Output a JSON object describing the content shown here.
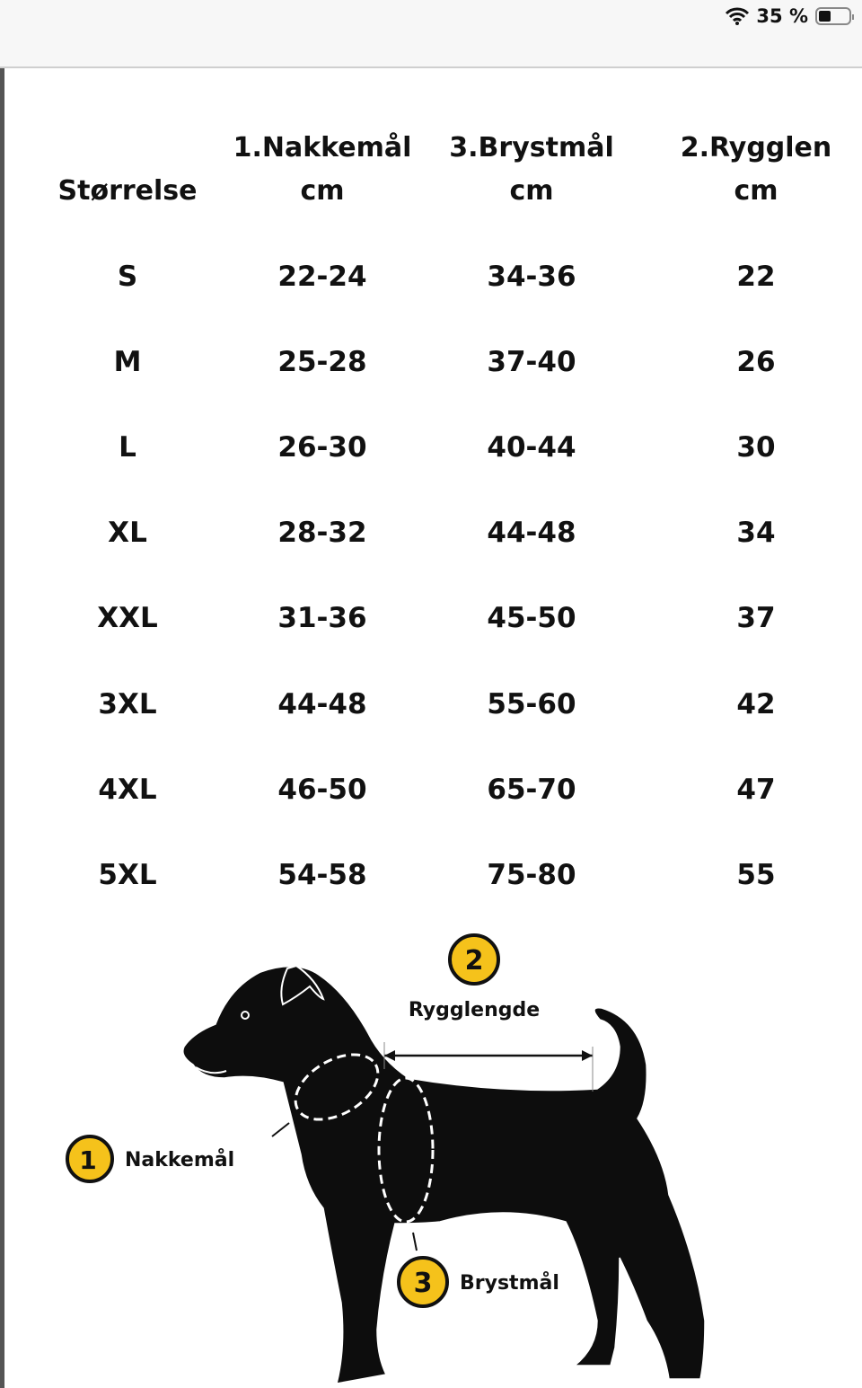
{
  "status_bar": {
    "wifi_icon": "wifi-icon",
    "battery_text": "35 %",
    "battery_level_percent": 35
  },
  "table": {
    "headers": [
      {
        "line1": "",
        "line2": "Størrelse"
      },
      {
        "line1": "1.Nakkemål",
        "line2": "cm"
      },
      {
        "line1": "3.Brystmål",
        "line2": "cm"
      },
      {
        "line1": "2.Rygglen",
        "line2": "cm"
      }
    ],
    "rows": [
      [
        "S",
        "22-24",
        "34-36",
        "22"
      ],
      [
        "M",
        "25-28",
        "37-40",
        "26"
      ],
      [
        "L",
        "26-30",
        "40-44",
        "30"
      ],
      [
        "XL",
        "28-32",
        "44-48",
        "34"
      ],
      [
        "XXL",
        "31-36",
        "45-50",
        "37"
      ],
      [
        "3XL",
        "44-48",
        "55-60",
        "42"
      ],
      [
        "4XL",
        "46-50",
        "65-70",
        "47"
      ],
      [
        "5XL",
        "54-58",
        "75-80",
        "55"
      ]
    ]
  },
  "diagram": {
    "accent_color": "#f5c21b",
    "labels": [
      {
        "number": "2",
        "text": "Rygglengde"
      },
      {
        "number": "1",
        "text": "Nakkemål"
      },
      {
        "number": "3",
        "text": "Brystmål"
      }
    ]
  }
}
